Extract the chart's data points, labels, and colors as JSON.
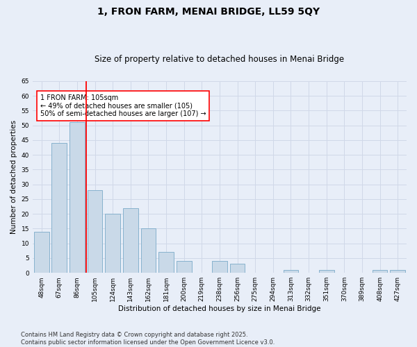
{
  "title": "1, FRON FARM, MENAI BRIDGE, LL59 5QY",
  "subtitle": "Size of property relative to detached houses in Menai Bridge",
  "xlabel": "Distribution of detached houses by size in Menai Bridge",
  "ylabel": "Number of detached properties",
  "categories": [
    "48sqm",
    "67sqm",
    "86sqm",
    "105sqm",
    "124sqm",
    "143sqm",
    "162sqm",
    "181sqm",
    "200sqm",
    "219sqm",
    "238sqm",
    "256sqm",
    "275sqm",
    "294sqm",
    "313sqm",
    "332sqm",
    "351sqm",
    "370sqm",
    "389sqm",
    "408sqm",
    "427sqm"
  ],
  "values": [
    14,
    44,
    51,
    28,
    20,
    22,
    15,
    7,
    4,
    0,
    4,
    3,
    0,
    0,
    1,
    0,
    1,
    0,
    0,
    1,
    1
  ],
  "bar_color": "#c9d9e8",
  "bar_edge_color": "#7aaac8",
  "grid_color": "#d0d8e8",
  "background_color": "#e8eef8",
  "vline_x_index": 3,
  "vline_color": "red",
  "annotation_text": "1 FRON FARM: 105sqm\n← 49% of detached houses are smaller (105)\n50% of semi-detached houses are larger (107) →",
  "annotation_box_color": "white",
  "annotation_box_edge_color": "red",
  "ylim": [
    0,
    65
  ],
  "yticks": [
    0,
    5,
    10,
    15,
    20,
    25,
    30,
    35,
    40,
    45,
    50,
    55,
    60,
    65
  ],
  "footer": "Contains HM Land Registry data © Crown copyright and database right 2025.\nContains public sector information licensed under the Open Government Licence v3.0.",
  "title_fontsize": 10,
  "subtitle_fontsize": 8.5,
  "axis_label_fontsize": 7.5,
  "tick_fontsize": 6.5,
  "annotation_fontsize": 7,
  "footer_fontsize": 6
}
